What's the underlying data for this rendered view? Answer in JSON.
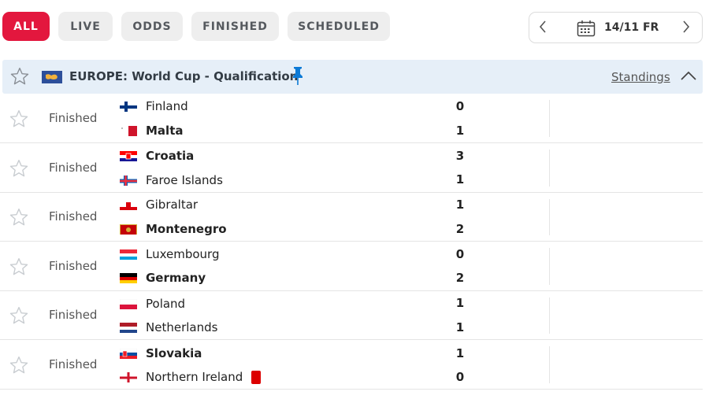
{
  "filters": {
    "tabs": [
      {
        "label": "ALL",
        "active": true
      },
      {
        "label": "LIVE",
        "active": false
      },
      {
        "label": "ODDS",
        "active": false
      },
      {
        "label": "FINISHED",
        "active": false
      },
      {
        "label": "SCHEDULED",
        "active": false
      }
    ],
    "date": "14/11 FR",
    "accent_color": "#e3173e"
  },
  "league": {
    "title": "EUROPE: World Cup - Qualification",
    "standings_label": "Standings",
    "header_bg": "#e6eff8"
  },
  "matches": [
    {
      "status": "Finished",
      "home": "Finland",
      "away": "Malta",
      "home_score": "0",
      "away_score": "1",
      "winner": "away"
    },
    {
      "status": "Finished",
      "home": "Croatia",
      "away": "Faroe Islands",
      "home_score": "3",
      "away_score": "1",
      "winner": "home"
    },
    {
      "status": "Finished",
      "home": "Gibraltar",
      "away": "Montenegro",
      "home_score": "1",
      "away_score": "2",
      "winner": "away"
    },
    {
      "status": "Finished",
      "home": "Luxembourg",
      "away": "Germany",
      "home_score": "0",
      "away_score": "2",
      "winner": "away"
    },
    {
      "status": "Finished",
      "home": "Poland",
      "away": "Netherlands",
      "home_score": "1",
      "away_score": "1",
      "winner": "none"
    },
    {
      "status": "Finished",
      "home": "Slovakia",
      "away": "Northern Ireland",
      "home_score": "1",
      "away_score": "0",
      "winner": "home",
      "away_red_cards": 1
    }
  ]
}
